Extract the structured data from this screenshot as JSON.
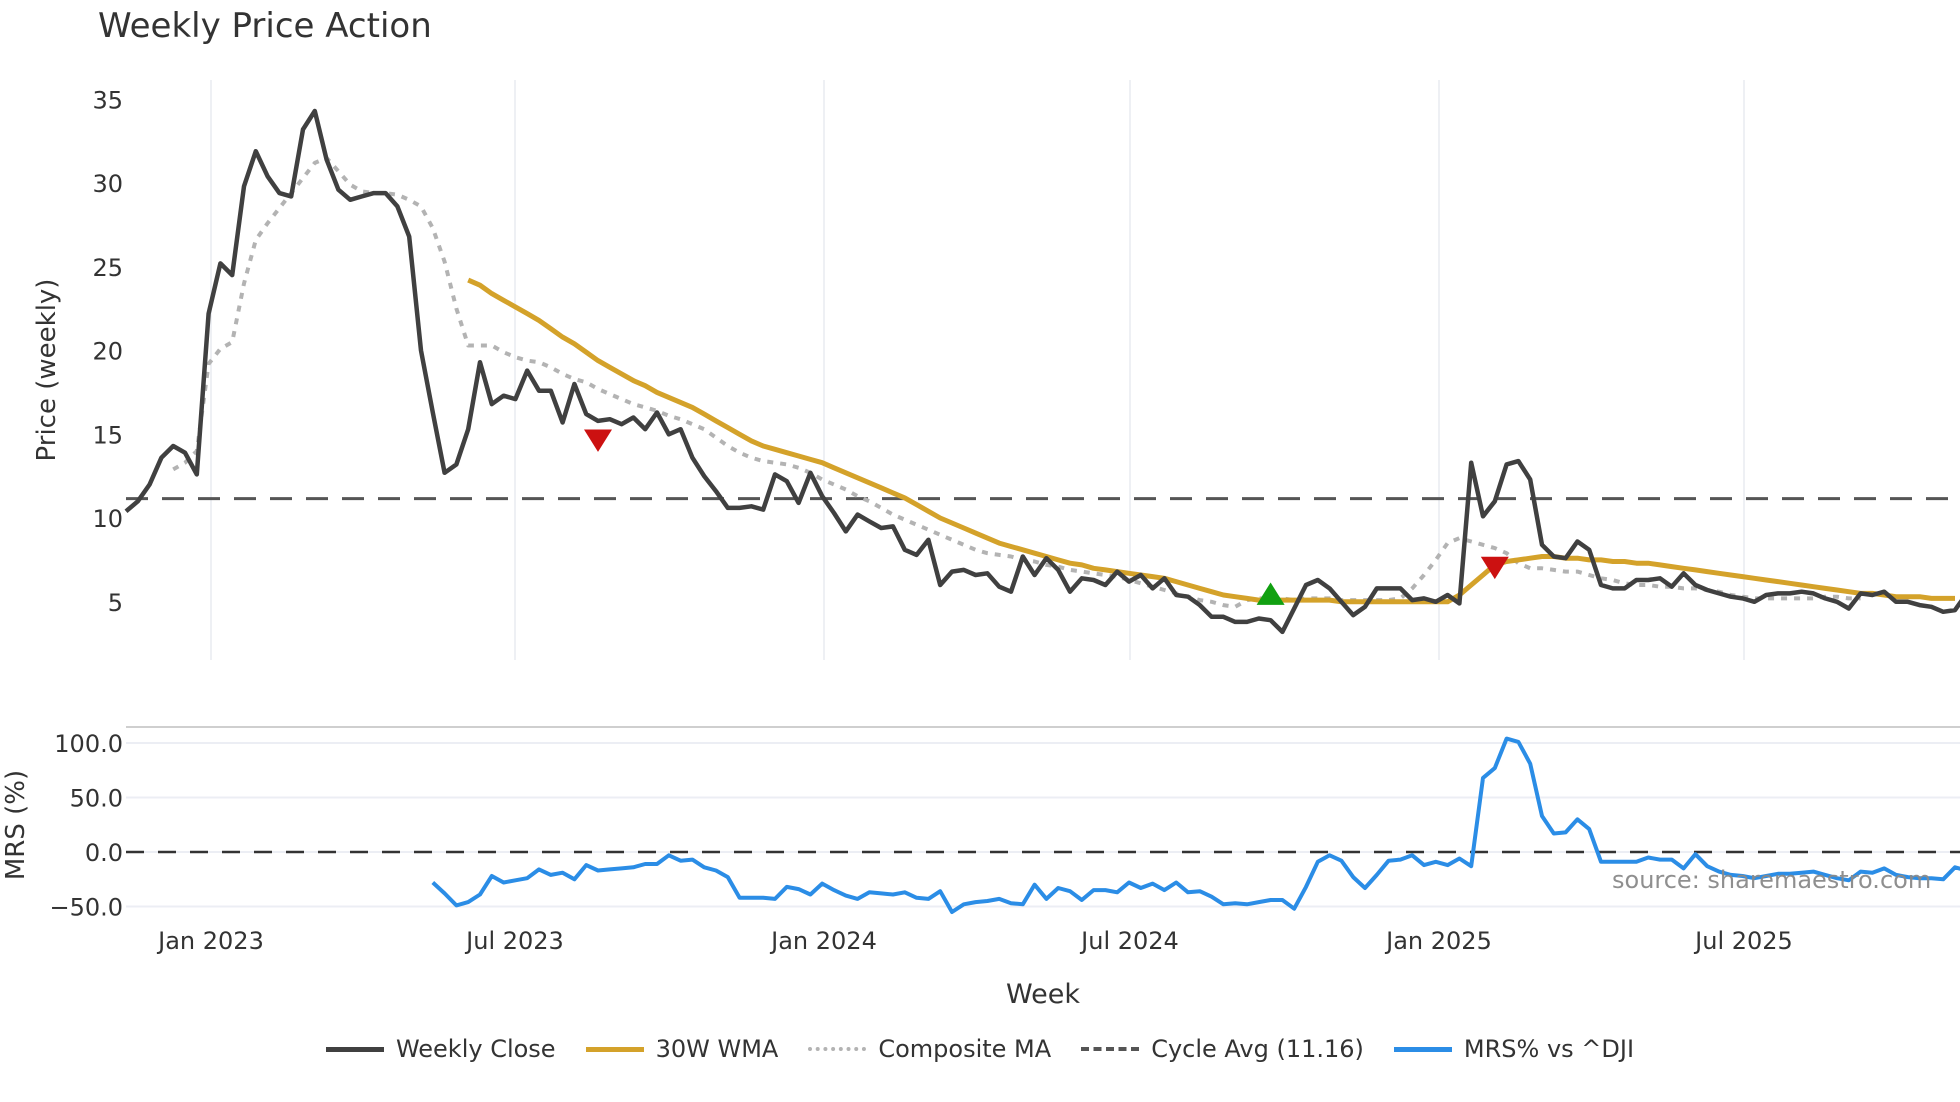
{
  "title": "Weekly Price Action",
  "source_note": "source: sharemaestro.com",
  "legend": [
    {
      "label": "Weekly Close",
      "color": "#404040",
      "style": "solid"
    },
    {
      "label": "30W WMA",
      "color": "#d4a22a",
      "style": "solid"
    },
    {
      "label": "Composite MA",
      "color": "#b3b3b3",
      "style": "dotted"
    },
    {
      "label": "Cycle Avg (11.16)",
      "color": "#555555",
      "style": "dashed"
    },
    {
      "label": "MRS% vs ^DJI",
      "color": "#2b8de6",
      "style": "solid"
    }
  ],
  "chart_data": [
    {
      "type": "line",
      "title": "Weekly Price Action",
      "xlabel": "Week",
      "ylabel": "Price (weekly)",
      "ylim": [
        1.5,
        36
      ],
      "yticks": [
        5,
        10,
        15,
        20,
        25,
        30,
        35
      ],
      "xticks": [
        "Jan 2023",
        "Jul 2023",
        "Jan 2024",
        "Jul 2024",
        "Jan 2025",
        "Jul 2025"
      ],
      "grid": true,
      "legend_position": "bottom",
      "x_start_week_offset": -7,
      "cycle_avg": 11.16,
      "series": [
        {
          "name": "Weekly Close",
          "start": 0,
          "values": [
            10.4,
            11.0,
            12.0,
            13.6,
            14.3,
            13.9,
            12.6,
            22.2,
            25.2,
            24.5,
            29.8,
            31.9,
            30.4,
            29.4,
            29.2,
            33.2,
            34.3,
            31.4,
            29.6,
            29.0,
            29.2,
            29.4,
            29.4,
            28.6,
            26.8,
            20.0,
            16.3,
            12.7,
            13.2,
            15.3,
            19.3,
            16.8,
            17.3,
            17.1,
            18.8,
            17.6,
            17.6,
            15.7,
            18.0,
            16.2,
            15.8,
            15.9,
            15.6,
            16.0,
            15.3,
            16.3,
            15.0,
            15.3,
            13.6,
            12.5,
            11.6,
            10.6,
            10.6,
            10.7,
            10.5,
            12.6,
            12.2,
            10.9,
            12.7,
            11.3,
            10.3,
            9.2,
            10.2,
            9.8,
            9.4,
            9.5,
            8.1,
            7.8,
            8.7,
            6.0,
            6.8,
            6.9,
            6.6,
            6.7,
            5.9,
            5.6,
            7.7,
            6.6,
            7.6,
            6.9,
            5.6,
            6.4,
            6.3,
            6.0,
            6.8,
            6.2,
            6.6,
            5.8,
            6.4,
            5.4,
            5.3,
            4.8,
            4.1,
            4.1,
            3.8,
            3.8,
            4.0,
            3.9,
            3.2,
            4.6,
            6.0,
            6.3,
            5.8,
            5.0,
            4.2,
            4.7,
            5.8,
            5.8,
            5.8,
            5.1,
            5.2,
            5.0,
            5.4,
            4.9,
            13.3,
            10.1,
            11.0,
            13.2,
            13.4,
            12.3,
            8.4,
            7.7,
            7.6,
            8.6,
            8.1,
            6.0,
            5.8,
            5.8,
            6.3,
            6.3,
            6.4,
            5.9,
            6.7,
            6.0,
            5.7,
            5.5,
            5.3,
            5.2,
            5.0,
            5.4,
            5.5,
            5.5,
            5.6,
            5.5,
            5.2,
            5.0,
            4.6,
            5.5,
            5.4,
            5.6,
            5.0,
            5.0,
            4.8,
            4.7,
            4.4,
            4.5,
            5.5,
            5.4,
            5.6
          ]
        },
        {
          "name": "30W WMA",
          "start": 29,
          "values": [
            24.2,
            23.9,
            23.4,
            23.0,
            22.6,
            22.2,
            21.8,
            21.3,
            20.8,
            20.4,
            19.9,
            19.4,
            19.0,
            18.6,
            18.2,
            17.9,
            17.5,
            17.2,
            16.9,
            16.6,
            16.2,
            15.8,
            15.4,
            15.0,
            14.6,
            14.3,
            14.1,
            13.9,
            13.7,
            13.5,
            13.3,
            13.0,
            12.7,
            12.4,
            12.1,
            11.8,
            11.5,
            11.2,
            10.8,
            10.4,
            10.0,
            9.7,
            9.4,
            9.1,
            8.8,
            8.5,
            8.3,
            8.1,
            7.9,
            7.7,
            7.5,
            7.3,
            7.2,
            7.0,
            6.9,
            6.8,
            6.7,
            6.6,
            6.5,
            6.4,
            6.2,
            6.0,
            5.8,
            5.6,
            5.4,
            5.3,
            5.2,
            5.1,
            5.1,
            5.1,
            5.1,
            5.1,
            5.1,
            5.1,
            5.0,
            5.0,
            5.0,
            5.0,
            5.0,
            5.0,
            5.0,
            5.0,
            5.0,
            5.0,
            5.4,
            6.0,
            6.6,
            7.2,
            7.4,
            7.5,
            7.6,
            7.7,
            7.7,
            7.6,
            7.6,
            7.5,
            7.5,
            7.4,
            7.4,
            7.3,
            7.3,
            7.2,
            7.1,
            7.0,
            6.9,
            6.8,
            6.7,
            6.6,
            6.5,
            6.4,
            6.3,
            6.2,
            6.1,
            6.0,
            5.9,
            5.8,
            5.7,
            5.6,
            5.5,
            5.5,
            5.4,
            5.3,
            5.3,
            5.3,
            5.2,
            5.2,
            5.2
          ]
        },
        {
          "name": "Composite MA",
          "start": 4,
          "values": [
            12.9,
            13.3,
            14.0,
            19.2,
            20.1,
            20.5,
            24.0,
            26.6,
            27.6,
            28.5,
            29.4,
            30.3,
            31.2,
            31.5,
            30.7,
            29.9,
            29.5,
            29.4,
            29.4,
            29.3,
            29.0,
            28.6,
            27.3,
            25.3,
            22.5,
            20.3,
            20.3,
            20.3,
            19.9,
            19.6,
            19.4,
            19.3,
            19.0,
            18.6,
            18.3,
            18.1,
            17.7,
            17.4,
            17.1,
            16.8,
            16.6,
            16.4,
            16.1,
            15.9,
            15.6,
            15.3,
            14.8,
            14.3,
            13.9,
            13.6,
            13.4,
            13.3,
            13.2,
            13.0,
            12.7,
            12.3,
            12.0,
            11.7,
            11.3,
            11.0,
            10.6,
            10.2,
            9.9,
            9.6,
            9.3,
            9.0,
            8.7,
            8.4,
            8.1,
            7.9,
            7.8,
            7.7,
            7.5,
            7.4,
            7.2,
            7.1,
            6.9,
            6.8,
            6.7,
            6.6,
            6.5,
            6.3,
            6.1,
            5.9,
            5.7,
            5.5,
            5.3,
            5.1,
            5.0,
            4.8,
            4.7,
            5.1,
            5.2,
            5.2,
            5.2,
            5.1,
            5.2,
            5.2,
            5.2,
            5.1,
            5.1,
            5.1,
            5.1,
            5.1,
            5.2,
            5.8,
            6.6,
            7.5,
            8.5,
            8.8,
            8.6,
            8.4,
            8.2,
            7.9,
            7.3,
            7.0,
            7.0,
            6.9,
            6.8,
            6.8,
            6.6,
            6.4,
            6.3,
            6.1,
            6.0,
            6.0,
            5.9,
            5.9,
            5.8,
            5.8,
            5.7,
            5.6,
            5.4,
            5.3,
            5.2,
            5.2,
            5.2,
            5.2,
            5.2,
            5.2,
            5.3,
            5.3,
            5.2,
            5.2
          ]
        }
      ],
      "markers": [
        {
          "type": "sell",
          "shape": "triangle-down",
          "color": "#cc1111",
          "week": 40,
          "price": 14.7
        },
        {
          "type": "buy",
          "shape": "triangle-up",
          "color": "#11a011",
          "week": 97,
          "price": 5.4
        },
        {
          "type": "sell",
          "shape": "triangle-down",
          "color": "#cc1111",
          "week": 116,
          "price": 7.1
        }
      ]
    },
    {
      "type": "line",
      "title": "",
      "xlabel": "Week",
      "ylabel": "MRS (%)",
      "ylim": [
        -62,
        114
      ],
      "yticks": [
        -50.0,
        0.0,
        50.0,
        100.0
      ],
      "ytick_labels": [
        "−50.0",
        "0.0",
        "50.0",
        "100.0"
      ],
      "xticks": [
        "Jan 2023",
        "Jul 2023",
        "Jan 2024",
        "Jul 2024",
        "Jan 2025",
        "Jul 2025"
      ],
      "zero_line": 0,
      "series": [
        {
          "name": "MRS% vs ^DJI",
          "start": 26,
          "values": [
            -28,
            -38,
            -49,
            -46,
            -39,
            -22,
            -28,
            -26,
            -24,
            -16,
            -21,
            -19,
            -25,
            -12,
            -17,
            -16,
            -15,
            -14,
            -11,
            -11,
            -3,
            -8,
            -7,
            -14,
            -17,
            -23,
            -42,
            -42,
            -42,
            -43,
            -32,
            -34,
            -39,
            -29,
            -35,
            -40,
            -43,
            -37,
            -38,
            -39,
            -37,
            -42,
            -43,
            -36,
            -55,
            -48,
            -46,
            -45,
            -43,
            -47,
            -48,
            -30,
            -43,
            -33,
            -36,
            -44,
            -35,
            -35,
            -37,
            -28,
            -33,
            -29,
            -35,
            -28,
            -37,
            -36,
            -41,
            -48,
            -47,
            -48,
            -46,
            -44,
            -44,
            -52,
            -32,
            -9,
            -3,
            -8,
            -23,
            -33,
            -21,
            -8,
            -7,
            -3,
            -12,
            -9,
            -12,
            -6,
            -13,
            68,
            77,
            104,
            101,
            81,
            33,
            17,
            18,
            30,
            21,
            -9,
            -9,
            -9,
            -9,
            -5,
            -7,
            -7,
            -15,
            -2,
            -13,
            -18,
            -21,
            -22,
            -24,
            -22,
            -20,
            -20,
            -19,
            -18,
            -21,
            -24,
            -26,
            -18,
            -19,
            -15,
            -21,
            -23,
            -24,
            -24,
            -25,
            -14,
            -17,
            -12
          ]
        }
      ]
    }
  ],
  "axes": {
    "price_ylabel": "Price (weekly)",
    "mrs_ylabel": "MRS (%)",
    "xlabel": "Week",
    "price_ticks": [
      "35",
      "30",
      "25",
      "20",
      "15",
      "10",
      "5"
    ],
    "mrs_ticks": [
      "100.0",
      "50.0",
      "0.0",
      "−50.0"
    ],
    "x_ticks": [
      "Jan 2023",
      "Jul 2023",
      "Jan 2024",
      "Jul 2024",
      "Jan 2025",
      "Jul 2025"
    ]
  }
}
